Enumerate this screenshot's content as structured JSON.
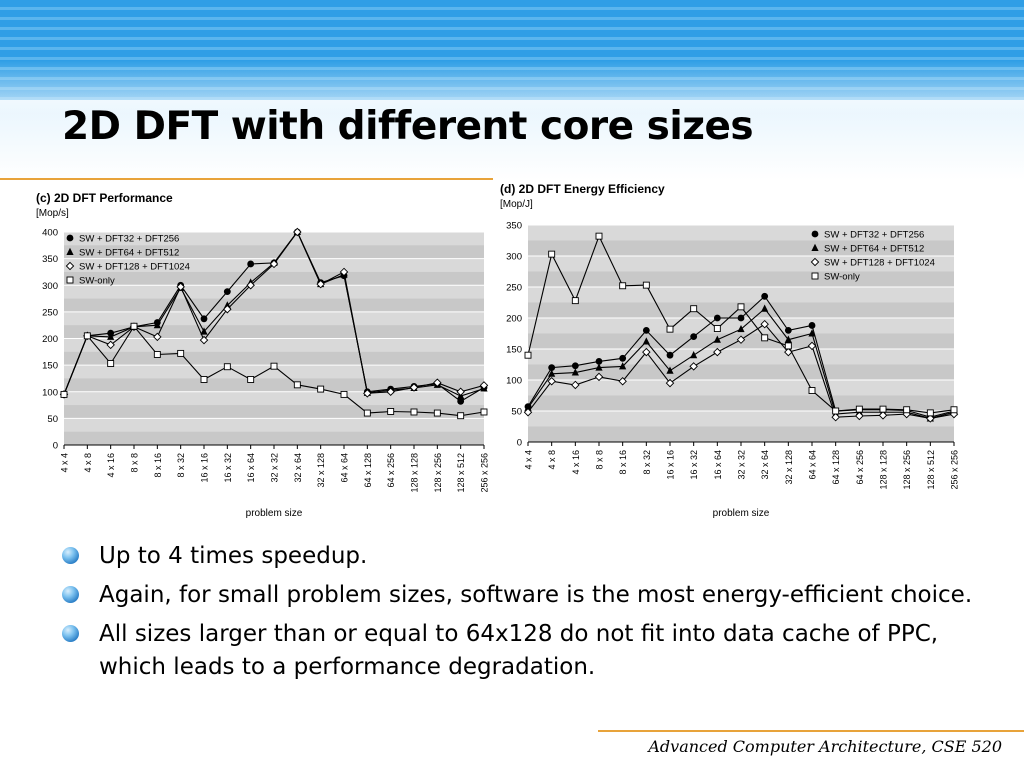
{
  "slide": {
    "title": "2D DFT with different core sizes",
    "bullets": [
      "Up to 4 times speedup.",
      "Again, for small problem sizes, software is the most energy-efficient choice.",
      "All sizes larger than or equal to 64x128 do not fit into data cache of PPC, which leads to a performance degradation."
    ],
    "footer": "Advanced Computer Architecture, CSE 520"
  },
  "chart_data": [
    {
      "type": "line",
      "title": "(c) 2D DFT Performance",
      "ylabel": "[Mop/s]",
      "xlabel": "problem size",
      "ylim": [
        0,
        400
      ],
      "yticks": [
        0,
        50,
        100,
        150,
        200,
        250,
        300,
        350,
        400
      ],
      "grid": true,
      "legend": "top-left",
      "categories": [
        "4 x 4",
        "4 x 8",
        "4 x 16",
        "8 x 8",
        "8 x 16",
        "8 x 32",
        "16 x 16",
        "16 x 32",
        "16 x 64",
        "32 x 32",
        "32 x 64",
        "32 x 128",
        "64 x 64",
        "64 x 128",
        "64 x 256",
        "128 x 128",
        "128 x 256",
        "128 x 512",
        "256 x 256"
      ],
      "series": [
        {
          "name": "SW + DFT32 + DFT256",
          "marker": "circle-filled",
          "values": [
            95,
            205,
            210,
            222,
            230,
            300,
            237,
            288,
            340,
            342,
            400,
            305,
            318,
            100,
            105,
            110,
            115,
            82,
            108
          ]
        },
        {
          "name": "SW + DFT64 + DFT512",
          "marker": "triangle-filled",
          "values": [
            95,
            205,
            203,
            222,
            225,
            295,
            213,
            262,
            305,
            342,
            400,
            302,
            320,
            98,
            103,
            107,
            113,
            92,
            106
          ]
        },
        {
          "name": "SW + DFT128 + DFT1024",
          "marker": "diamond-open",
          "values": [
            95,
            205,
            188,
            222,
            203,
            297,
            197,
            255,
            300,
            340,
            400,
            302,
            325,
            97,
            100,
            108,
            117,
            100,
            112
          ]
        },
        {
          "name": "SW-only",
          "marker": "square-open",
          "values": [
            95,
            205,
            153,
            223,
            170,
            172,
            123,
            147,
            123,
            148,
            113,
            105,
            95,
            60,
            63,
            62,
            60,
            55,
            62
          ]
        }
      ]
    },
    {
      "type": "line",
      "title": "(d) 2D DFT Energy Efficiency",
      "ylabel": "[Mop/J]",
      "xlabel": "problem size",
      "ylim": [
        0,
        350
      ],
      "yticks": [
        0,
        50,
        100,
        150,
        200,
        250,
        300,
        350
      ],
      "grid": true,
      "legend": "top-right",
      "categories": [
        "4 x 4",
        "4 x 8",
        "4 x 16",
        "8 x 8",
        "8 x 16",
        "8 x 32",
        "16 x 16",
        "16 x 32",
        "16 x 64",
        "32 x 32",
        "32 x 64",
        "32 x 128",
        "64 x 64",
        "64 x 128",
        "64 x 256",
        "128 x 128",
        "128 x 256",
        "128 x 512",
        "256 x 256"
      ],
      "series": [
        {
          "name": "SW + DFT32 + DFT256",
          "marker": "circle-filled",
          "values": [
            57,
            120,
            123,
            130,
            135,
            180,
            140,
            170,
            200,
            200,
            235,
            180,
            188,
            50,
            52,
            52,
            51,
            40,
            50
          ]
        },
        {
          "name": "SW + DFT64 + DFT512",
          "marker": "triangle-filled",
          "values": [
            55,
            110,
            112,
            120,
            122,
            162,
            115,
            140,
            165,
            182,
            215,
            165,
            175,
            45,
            48,
            48,
            48,
            38,
            48
          ]
        },
        {
          "name": "SW + DFT128 + DFT1024",
          "marker": "diamond-open",
          "values": [
            48,
            98,
            92,
            105,
            98,
            145,
            95,
            122,
            145,
            165,
            190,
            145,
            155,
            40,
            42,
            43,
            45,
            38,
            45
          ]
        },
        {
          "name": "SW-only",
          "marker": "square-open",
          "values": [
            140,
            303,
            228,
            332,
            252,
            253,
            182,
            215,
            183,
            218,
            168,
            155,
            83,
            50,
            53,
            53,
            52,
            47,
            52
          ]
        }
      ]
    }
  ]
}
